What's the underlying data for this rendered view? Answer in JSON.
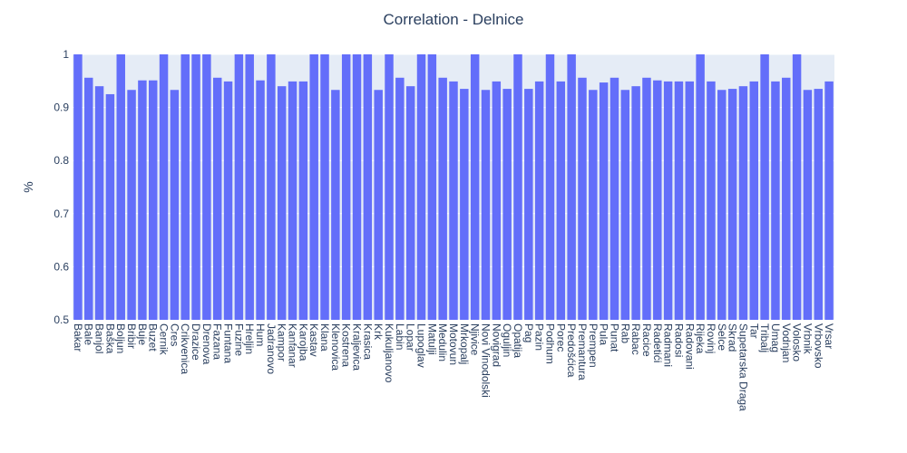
{
  "chart_data": {
    "type": "bar",
    "title": "Correlation - Delnice",
    "xlabel": "",
    "ylabel": "%",
    "ylim": [
      0.5,
      1.0
    ],
    "yticks": [
      0.5,
      0.6,
      0.7,
      0.8,
      0.9,
      1
    ],
    "grid": true,
    "legend": "none",
    "bar_color": "#636efa",
    "plot_bg": "#e5ecf6",
    "categories": [
      "Bakar",
      "Bale",
      "Banjol",
      "Baška",
      "Boljun",
      "Bribir",
      "Buje",
      "Buzet",
      "Cernik",
      "Cres",
      "Crikvenica",
      "Drazice",
      "Drenova",
      "Fazana",
      "Funtana",
      "Fuzine",
      "Hreljin",
      "Hum",
      "Jadranovo",
      "Kampor",
      "Kanfanar",
      "Karojba",
      "Kastav",
      "Klana",
      "Klenovica",
      "Kostrena",
      "Kraljevica",
      "Krasica",
      "Krk",
      "Kukuljanovo",
      "Labin",
      "Lopar",
      "Lupoglav",
      "Matulji",
      "Medulin",
      "Motovun",
      "Mrkopalj",
      "Njivice",
      "Novi Vinodolski",
      "Novigrad",
      "Oguljin",
      "Opatija",
      "Pag",
      "Pazin",
      "Podhum",
      "Porec",
      "Predošćica",
      "Premantura",
      "Prempen",
      "Pula",
      "Punat",
      "Rab",
      "Rabac",
      "Racice",
      "Radetići",
      "Radmani",
      "Radosi",
      "Radovani",
      "Rijeka",
      "Rovinj",
      "Selce",
      "Skrad",
      "Supetarska Draga",
      "Tar",
      "Tribalj",
      "Umag",
      "Vodnjan",
      "Volosko",
      "Vrbnik",
      "Vrbovsko",
      "Vrsar"
    ],
    "values": [
      1.0,
      0.956,
      0.94,
      0.925,
      1.0,
      0.933,
      0.951,
      0.951,
      1.0,
      0.933,
      1.0,
      1.0,
      1.0,
      0.956,
      0.949,
      1.0,
      1.0,
      0.951,
      1.0,
      0.94,
      0.949,
      0.949,
      1.0,
      1.0,
      0.933,
      1.0,
      1.0,
      1.0,
      0.933,
      1.0,
      0.956,
      0.94,
      1.0,
      1.0,
      0.956,
      0.949,
      0.935,
      1.0,
      0.933,
      0.949,
      0.935,
      1.0,
      0.935,
      0.949,
      1.0,
      0.949,
      1.0,
      0.956,
      0.933,
      0.947,
      0.956,
      0.933,
      0.94,
      0.956,
      0.951,
      0.949,
      0.949,
      0.949,
      1.0,
      0.949,
      0.933,
      0.935,
      0.94,
      0.949,
      1.0,
      0.949,
      0.956,
      1.0,
      0.933,
      0.935,
      0.949
    ]
  }
}
